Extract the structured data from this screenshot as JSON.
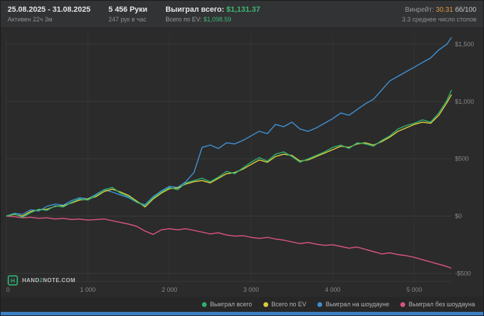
{
  "header": {
    "date_range": "25.08.2025 - 31.08.2025",
    "active_time": "Активен 22ч 3м",
    "hands": "5 456 Руки",
    "hands_per_hour": "247 рук в час",
    "won_total_label": "Выиграл всего:",
    "won_total_value": "$1,131.37",
    "ev_total_label": "Всего по EV:",
    "ev_total_value": "$1,098.59",
    "winrate_label": "Винрейт:",
    "winrate_value": "30.31",
    "winrate_unit": "бб/100",
    "avg_tables": "3.3 среднее число столов"
  },
  "watermark": {
    "logo_letter": "H",
    "prefix": "HAND",
    "digit": "2",
    "suffix": "NOTE.COM"
  },
  "colors": {
    "green_value": "#3db873",
    "orange_value": "#e09b3d",
    "accent_bar": "#3e7fc2",
    "chart_bg": "#2b2b2b",
    "header_bg": "#323335"
  },
  "chart_data": {
    "type": "line",
    "title": "",
    "xlabel": "",
    "ylabel": "",
    "grid": true,
    "legend_position": "bottom-right",
    "xlim": [
      0,
      5456
    ],
    "ylim": [
      -570,
      1590
    ],
    "xticks": [
      0,
      1000,
      2000,
      3000,
      4000,
      5000
    ],
    "xtick_labels": [
      "0",
      "1 000",
      "2 000",
      "3 000",
      "4 000",
      "5 000"
    ],
    "yticks": [
      1500,
      1000,
      500,
      0,
      -500
    ],
    "ytick_labels": [
      "$1,500",
      "$1,000",
      "$500",
      "$0",
      "-$500"
    ],
    "x": [
      0,
      100,
      200,
      300,
      400,
      500,
      600,
      700,
      800,
      900,
      1000,
      1100,
      1200,
      1300,
      1400,
      1500,
      1600,
      1700,
      1800,
      1900,
      2000,
      2100,
      2200,
      2300,
      2400,
      2500,
      2600,
      2700,
      2800,
      2900,
      3000,
      3100,
      3200,
      3300,
      3400,
      3500,
      3600,
      3700,
      3800,
      3900,
      4000,
      4100,
      4200,
      4300,
      4400,
      4500,
      4600,
      4700,
      4800,
      4900,
      5000,
      5100,
      5200,
      5300,
      5400,
      5456
    ],
    "series": [
      {
        "id": "won-total",
        "name": "Выиграл всего",
        "color": "#2fae70",
        "values": [
          0,
          20,
          -10,
          30,
          60,
          50,
          90,
          80,
          120,
          150,
          140,
          180,
          230,
          250,
          200,
          170,
          120,
          90,
          160,
          210,
          250,
          230,
          290,
          310,
          330,
          300,
          340,
          390,
          370,
          420,
          470,
          510,
          480,
          540,
          560,
          520,
          470,
          500,
          530,
          560,
          600,
          620,
          590,
          640,
          630,
          610,
          660,
          700,
          760,
          790,
          810,
          840,
          820,
          900,
          1010,
          1100
        ]
      },
      {
        "id": "ev-total",
        "name": "Всего по EV",
        "color": "#d8cc3c",
        "values": [
          0,
          15,
          0,
          40,
          55,
          60,
          85,
          90,
          115,
          140,
          150,
          170,
          215,
          235,
          210,
          180,
          130,
          80,
          150,
          200,
          240,
          245,
          280,
          300,
          310,
          290,
          330,
          370,
          380,
          410,
          450,
          490,
          470,
          520,
          540,
          530,
          480,
          490,
          520,
          550,
          580,
          610,
          600,
          630,
          640,
          620,
          650,
          690,
          740,
          770,
          800,
          820,
          810,
          880,
          990,
          1060
        ]
      },
      {
        "id": "won-showdown",
        "name": "Выиграл на шоудауне",
        "color": "#3e8ed0",
        "values": [
          0,
          25,
          15,
          55,
          45,
          85,
          105,
          95,
          135,
          160,
          150,
          190,
          230,
          210,
          185,
          160,
          120,
          100,
          170,
          220,
          260,
          250,
          300,
          380,
          600,
          620,
          590,
          640,
          630,
          660,
          700,
          740,
          720,
          800,
          780,
          820,
          760,
          740,
          770,
          810,
          850,
          900,
          880,
          930,
          980,
          1020,
          1100,
          1180,
          1220,
          1260,
          1300,
          1340,
          1380,
          1450,
          1500,
          1560
        ]
      },
      {
        "id": "won-nonshowdown",
        "name": "Выиграл без шоудауна",
        "color": "#d9537f",
        "values": [
          0,
          -5,
          -15,
          -10,
          -20,
          -15,
          -25,
          -20,
          -30,
          -25,
          -35,
          -30,
          -25,
          -40,
          -55,
          -70,
          -90,
          -130,
          -160,
          -120,
          -110,
          -120,
          -110,
          -125,
          -140,
          -155,
          -145,
          -165,
          -175,
          -170,
          -185,
          -195,
          -185,
          -200,
          -210,
          -225,
          -240,
          -230,
          -245,
          -255,
          -250,
          -265,
          -280,
          -270,
          -290,
          -310,
          -330,
          -320,
          -335,
          -345,
          -360,
          -380,
          -400,
          -420,
          -440,
          -455
        ]
      }
    ]
  }
}
